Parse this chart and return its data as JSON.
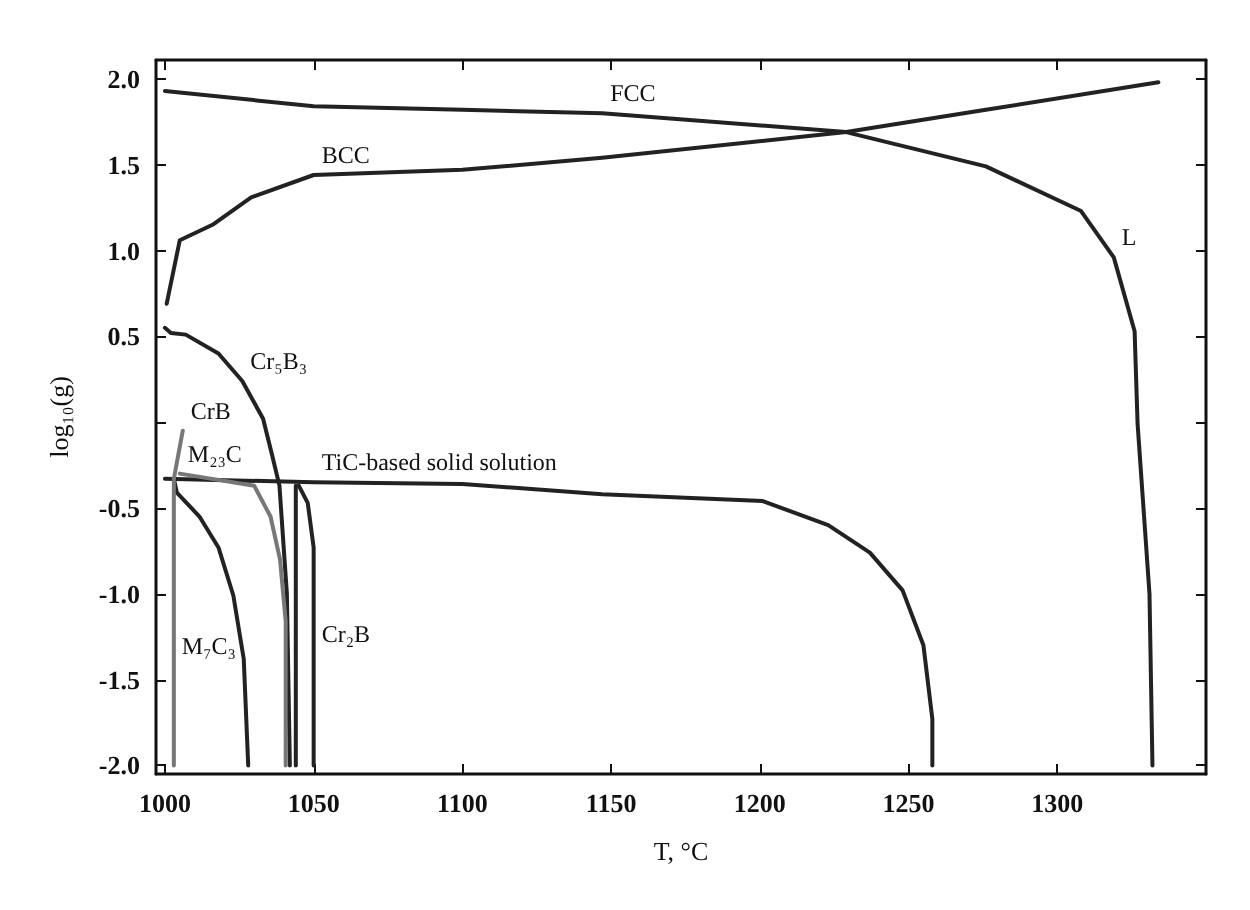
{
  "chart_data": {
    "type": "line",
    "xlabel": "T, °C",
    "ylabel": "log₁₀(g)",
    "xlim": [
      997,
      1350
    ],
    "ylim": [
      -2.05,
      2.11
    ],
    "xticks": [
      1000,
      1050,
      1100,
      1150,
      1200,
      1250,
      1300
    ],
    "yticks": [
      {
        "value": -2,
        "label": "-2.0"
      },
      {
        "value": -1.5,
        "label": "-1.5"
      },
      {
        "value": -1,
        "label": "-1.0"
      },
      {
        "value": -0.5,
        "label": "-0.5"
      },
      {
        "value": 0,
        "label": null
      },
      {
        "value": 0.5,
        "label": "0.5"
      },
      {
        "value": 1,
        "label": "1.0"
      },
      {
        "value": 1.5,
        "label": "1.5"
      },
      {
        "value": 2,
        "label": "2.0"
      }
    ],
    "grid": false,
    "marker": "none",
    "line_style": "solid",
    "series": [
      {
        "color": "#222222",
        "x": [
          1000,
          1050,
          1100,
          1147,
          1229,
          1276,
          1308,
          1319,
          1326,
          1327,
          1331,
          1332
        ],
        "values": [
          1.93,
          1.84,
          1.82,
          1.8,
          1.69,
          1.49,
          1.23,
          0.96,
          0.53,
          -0.01,
          -1,
          -2.0
        ]
      },
      {
        "color": "#222222",
        "x": [
          1000.6,
          1005,
          1016,
          1029,
          1050,
          1100,
          1147,
          1229,
          1276,
          1334
        ],
        "values": [
          0.69,
          1.06,
          1.15,
          1.31,
          1.44,
          1.47,
          1.54,
          1.69,
          1.82,
          1.98
        ]
      },
      {
        "color": "#222222",
        "x": [
          1000,
          1002,
          1007,
          1018,
          1026,
          1033,
          1036,
          1038.5,
          1041,
          1042
        ],
        "values": [
          0.55,
          0.52,
          0.51,
          0.4,
          0.24,
          0.02,
          -0.19,
          -0.37,
          -1,
          -2.0
        ]
      },
      {
        "color": "#222222",
        "x": [
          1000,
          1050,
          1100,
          1147,
          1201,
          1223,
          1237,
          1248,
          1255,
          1258,
          1258
        ],
        "values": [
          -0.33,
          -0.35,
          -0.36,
          -0.42,
          -0.46,
          -0.6,
          -0.76,
          -0.98,
          -1.3,
          -1.73,
          -2.0
        ]
      },
      {
        "color": "#222222",
        "x": [
          1003,
          1004,
          1011.6,
          1018,
          1023,
          1026.5,
          1028
        ],
        "values": [
          -0.33,
          -0.41,
          -0.55,
          -0.73,
          -1.01,
          -1.38,
          -2.0
        ]
      },
      {
        "color": "#777777",
        "x": [
          1006,
          1003,
          1003,
          1003
        ],
        "values": [
          -0.05,
          -0.33,
          -1.42,
          -2.0
        ]
      },
      {
        "color": "#777777",
        "x": [
          1005,
          1030,
          1035.5,
          1038.7,
          1040.6,
          1040.6
        ],
        "values": [
          -0.3,
          -0.37,
          -0.55,
          -0.8,
          -1.16,
          -2.0
        ]
      },
      {
        "color": "#222222",
        "x": [
          1044,
          1044
        ],
        "values": [
          -0.37,
          -2.0
        ]
      },
      {
        "color": "#222222",
        "x": [
          1045,
          1048,
          1050,
          1050,
          1050
        ],
        "values": [
          -0.37,
          -0.47,
          -0.73,
          -1.35,
          -2.0
        ]
      }
    ],
    "annotations": [
      {
        "text": "FCC",
        "x": 1147,
        "y": 1.8
      },
      {
        "text": "BCC",
        "x": 1050,
        "y": 1.44
      },
      {
        "text": "L",
        "x": 1319,
        "y": 0.96
      },
      {
        "text": "Cr₅B₃",
        "x": 1026,
        "y": 0.24
      },
      {
        "text": "CrB",
        "x": 1006,
        "y": -0.05
      },
      {
        "text": "M₂₃C",
        "x": 1005,
        "y": -0.3
      },
      {
        "text": "TiC-based solid solution",
        "x": 1050,
        "y": -0.35
      },
      {
        "text": "Cr₂B",
        "x": 1050,
        "y": -1.35
      },
      {
        "text": "M₇C₃",
        "x": 1003,
        "y": -1.42
      }
    ]
  }
}
